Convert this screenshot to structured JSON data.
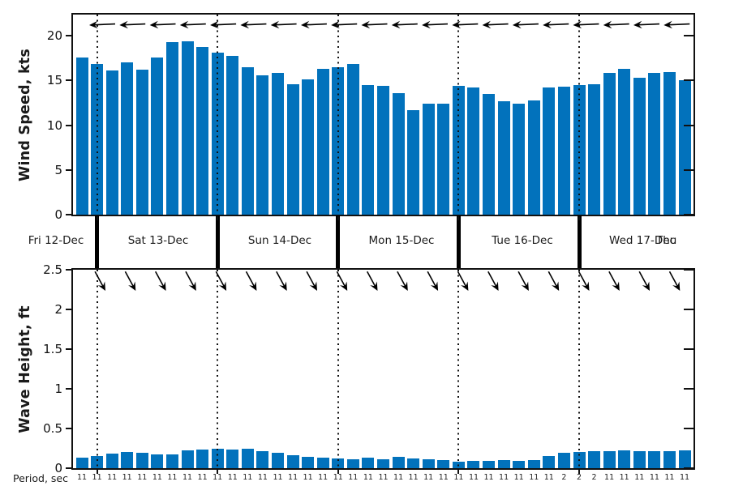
{
  "chart_data": [
    {
      "id": "wind",
      "type": "bar",
      "title": "",
      "ylabel": "Wind Speed, kts",
      "yticks": [
        0,
        5,
        10,
        15,
        20
      ],
      "ylim": [
        0,
        22.4
      ],
      "grid": false,
      "legend": "none",
      "bar_color": "#0272bc",
      "values": [
        17.6,
        16.8,
        16.1,
        17.0,
        16.2,
        17.6,
        19.3,
        19.4,
        18.7,
        18.1,
        17.7,
        16.5,
        15.6,
        15.8,
        14.6,
        15.1,
        16.3,
        16.5,
        16.8,
        14.5,
        14.4,
        13.6,
        11.7,
        12.4,
        12.4,
        14.4,
        14.2,
        13.5,
        12.7,
        12.4,
        12.8,
        14.2,
        14.3,
        14.5,
        14.6,
        15.8,
        16.3,
        15.3,
        15.8,
        15.9,
        15.0
      ],
      "direction_arrows": {
        "meaning": "wind-direction",
        "pointing": "left",
        "count": 20
      },
      "day_boundary_dotted_lines": true
    },
    {
      "id": "wave",
      "type": "bar",
      "title": "",
      "ylabel": "Wave Height, ft",
      "yticks": [
        0,
        0.5,
        1,
        1.5,
        2,
        2.5
      ],
      "ylim": [
        0,
        2.5
      ],
      "grid": false,
      "legend": "none",
      "bar_color": "#0272bc",
      "values": [
        0.13,
        0.15,
        0.18,
        0.2,
        0.19,
        0.17,
        0.17,
        0.22,
        0.24,
        0.25,
        0.24,
        0.25,
        0.21,
        0.19,
        0.16,
        0.14,
        0.13,
        0.12,
        0.11,
        0.13,
        0.11,
        0.14,
        0.12,
        0.11,
        0.1,
        0.08,
        0.09,
        0.09,
        0.1,
        0.09,
        0.1,
        0.15,
        0.19,
        0.2,
        0.21,
        0.21,
        0.22,
        0.21,
        0.21,
        0.21,
        0.22
      ],
      "direction_arrows": {
        "meaning": "swell-direction",
        "pointing": "down-right",
        "count": 20
      },
      "day_boundary_dotted_lines": true
    }
  ],
  "x_axis": {
    "day_labels": [
      "Fri 12-Dec",
      "Sat 13-Dec",
      "Sun 14-Dec",
      "Mon 15-Dec",
      "Tue 16-Dec",
      "Wed 17-Dec"
    ],
    "partial_day_label": "Thu",
    "bars_per_day": 8
  },
  "period_row": {
    "label": "Period, sec",
    "values": [
      "11",
      "11",
      "11",
      "11",
      "11",
      "11",
      "11",
      "11",
      "11",
      "11",
      "11",
      "11",
      "11",
      "11",
      "11",
      "11",
      "11",
      "11",
      "11",
      "11",
      "11",
      "11",
      "11",
      "11",
      "11",
      "11",
      "11",
      "11",
      "11",
      "11",
      "11",
      "11",
      "2",
      "2",
      "2",
      "11",
      "11",
      "11",
      "11",
      "11",
      "11"
    ]
  },
  "colors": {
    "bar": "#0272bc",
    "axis": "#111111",
    "background": "#ffffff",
    "arrow": "#000000"
  }
}
